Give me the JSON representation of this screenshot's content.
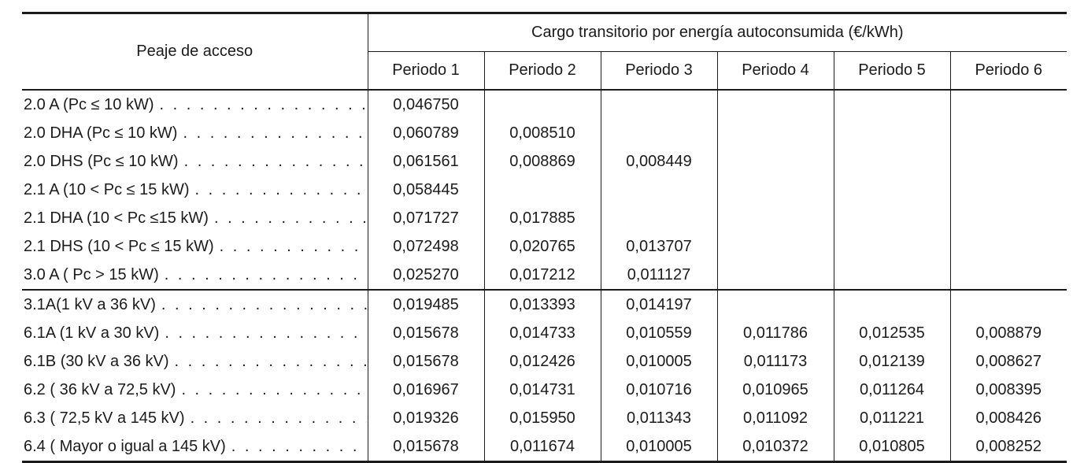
{
  "table": {
    "corner_header": "Peaje de acceso",
    "group_header": "Cargo transitorio por energía autoconsumida (€/kWh)",
    "period_headers": [
      "Periodo 1",
      "Periodo 2",
      "Periodo 3",
      "Periodo 4",
      "Periodo 5",
      "Periodo 6"
    ],
    "groups": [
      {
        "rows": [
          {
            "label": "2.0 A (Pc ≤ 10 kW)",
            "values": [
              "0,046750",
              "",
              "",
              "",
              "",
              ""
            ]
          },
          {
            "label": "2.0 DHA (Pc ≤ 10 kW)",
            "values": [
              "0,060789",
              "0,008510",
              "",
              "",
              "",
              ""
            ]
          },
          {
            "label": "2.0 DHS (Pc ≤ 10 kW)",
            "values": [
              "0,061561",
              "0,008869",
              "0,008449",
              "",
              "",
              ""
            ]
          },
          {
            "label": "2.1 A (10 < Pc ≤ 15 kW)",
            "values": [
              "0,058445",
              "",
              "",
              "",
              "",
              ""
            ]
          },
          {
            "label": "2.1 DHA (10 < Pc ≤15 kW)",
            "values": [
              "0,071727",
              "0,017885",
              "",
              "",
              "",
              ""
            ]
          },
          {
            "label": "2.1 DHS (10 < Pc ≤ 15 kW)",
            "values": [
              "0,072498",
              "0,020765",
              "0,013707",
              "",
              "",
              ""
            ]
          },
          {
            "label": "3.0 A ( Pc > 15 kW)",
            "values": [
              "0,025270",
              "0,017212",
              "0,011127",
              "",
              "",
              ""
            ]
          }
        ]
      },
      {
        "rows": [
          {
            "label": "3.1A(1 kV a 36 kV)",
            "values": [
              "0,019485",
              "0,013393",
              "0,014197",
              "",
              "",
              ""
            ]
          },
          {
            "label": "6.1A (1 kV a 30 kV)",
            "values": [
              "0,015678",
              "0,014733",
              "0,010559",
              "0,011786",
              "0,012535",
              "0,008879"
            ]
          },
          {
            "label": "6.1B (30 kV a 36 kV)",
            "values": [
              "0,015678",
              "0,012426",
              "0,010005",
              "0,011173",
              "0,012139",
              "0,008627"
            ]
          },
          {
            "label": "6.2 ( 36 kV a 72,5 kV)",
            "values": [
              "0,016967",
              "0,014731",
              "0,010716",
              "0,010965",
              "0,011264",
              "0,008395"
            ]
          },
          {
            "label": "6.3 ( 72,5 kV a 145 kV)",
            "values": [
              "0,019326",
              "0,015950",
              "0,011343",
              "0,011092",
              "0,011221",
              "0,008426"
            ]
          },
          {
            "label": "6.4 ( Mayor o igual a 145 kV)",
            "values": [
              "0,015678",
              "0,011674",
              "0,010005",
              "0,010372",
              "0,010805",
              "0,008252"
            ]
          }
        ]
      }
    ]
  },
  "colors": {
    "text": "#1b1b1b",
    "line": "#1b1b1b",
    "background": "#ffffff"
  }
}
